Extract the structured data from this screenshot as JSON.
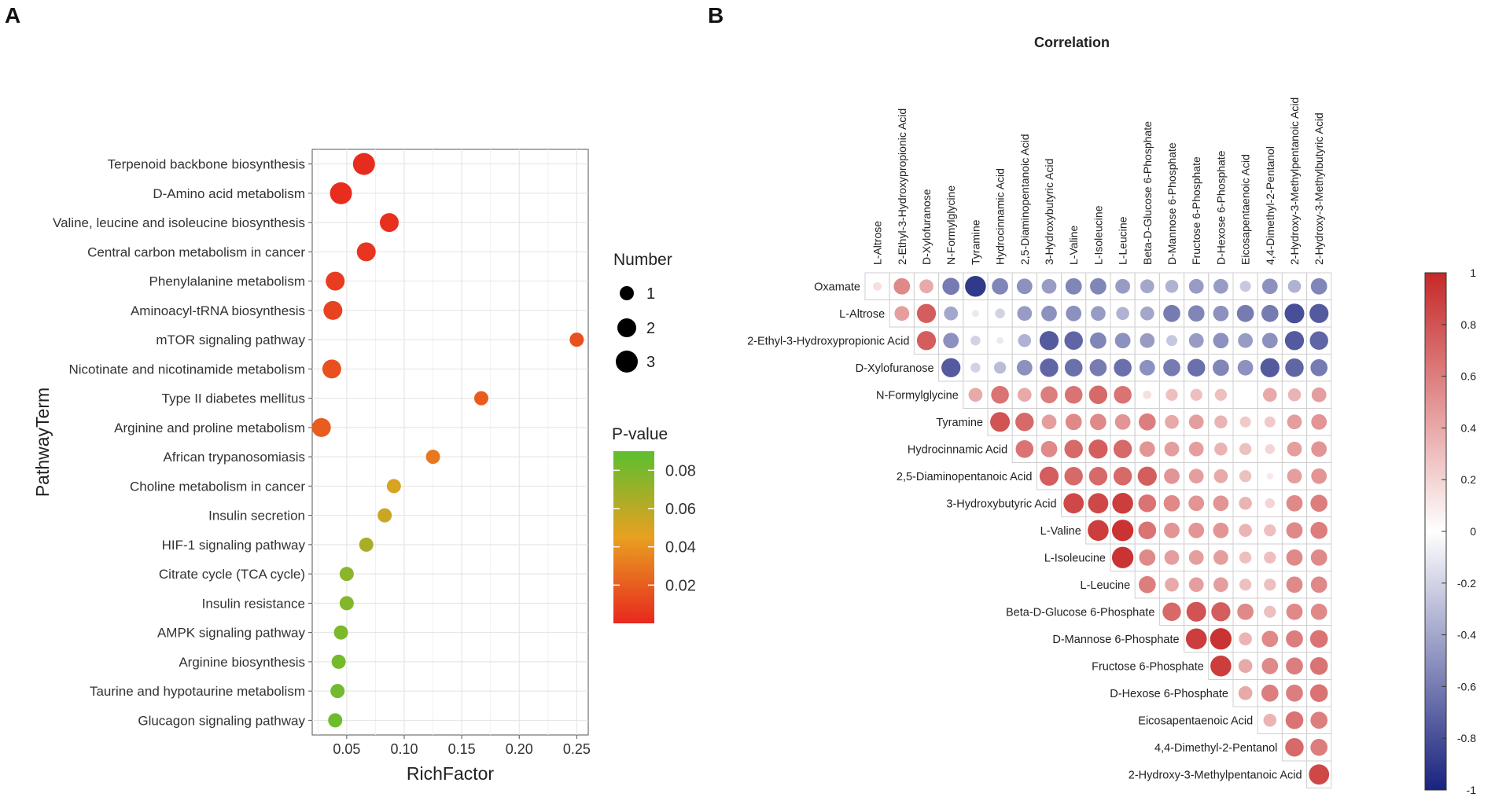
{
  "panels": {
    "a_label": "A",
    "b_label": "B"
  },
  "chart_data": [
    {
      "type": "scatter",
      "id": "A",
      "title": "",
      "xlabel": "RichFactor",
      "ylabel": "PathwayTerm",
      "xlim": [
        0.02,
        0.26
      ],
      "xticks": [
        0.05,
        0.1,
        0.15,
        0.2,
        0.25
      ],
      "xtick_labels": [
        "0.05",
        "0.10",
        "0.15",
        "0.20",
        "0.25"
      ],
      "grid": true,
      "points": [
        {
          "term": "Terpenoid backbone biosynthesis",
          "x": 0.065,
          "number": 3,
          "p": 0.001
        },
        {
          "term": "D-Amino acid metabolism",
          "x": 0.045,
          "number": 3,
          "p": 0.002
        },
        {
          "term": "Valine, leucine and isoleucine biosynthesis",
          "x": 0.087,
          "number": 2,
          "p": 0.003
        },
        {
          "term": "Central carbon metabolism in cancer",
          "x": 0.067,
          "number": 2,
          "p": 0.005
        },
        {
          "term": "Phenylalanine metabolism",
          "x": 0.04,
          "number": 2,
          "p": 0.007
        },
        {
          "term": "Aminoacyl-tRNA biosynthesis",
          "x": 0.038,
          "number": 2,
          "p": 0.01
        },
        {
          "term": "mTOR signaling pathway",
          "x": 0.25,
          "number": 1,
          "p": 0.015
        },
        {
          "term": "Nicotinate and nicotinamide metabolism",
          "x": 0.037,
          "number": 2,
          "p": 0.015
        },
        {
          "term": "Type II diabetes mellitus",
          "x": 0.167,
          "number": 1,
          "p": 0.02
        },
        {
          "term": "Arginine and proline metabolism",
          "x": 0.028,
          "number": 2,
          "p": 0.02
        },
        {
          "term": "African trypanosomiasis",
          "x": 0.125,
          "number": 1,
          "p": 0.03
        },
        {
          "term": "Choline metabolism in cancer",
          "x": 0.091,
          "number": 1,
          "p": 0.05
        },
        {
          "term": "Insulin secretion",
          "x": 0.083,
          "number": 1,
          "p": 0.055
        },
        {
          "term": "HIF-1 signaling pathway",
          "x": 0.067,
          "number": 1,
          "p": 0.065
        },
        {
          "term": "Citrate cycle (TCA cycle)",
          "x": 0.05,
          "number": 1,
          "p": 0.075
        },
        {
          "term": "Insulin resistance",
          "x": 0.05,
          "number": 1,
          "p": 0.077
        },
        {
          "term": "AMPK signaling pathway",
          "x": 0.045,
          "number": 1,
          "p": 0.08
        },
        {
          "term": "Arginine biosynthesis",
          "x": 0.043,
          "number": 1,
          "p": 0.082
        },
        {
          "term": "Taurine and hypotaurine metabolism",
          "x": 0.042,
          "number": 1,
          "p": 0.083
        },
        {
          "term": "Glucagon signaling pathway",
          "x": 0.04,
          "number": 1,
          "p": 0.085
        }
      ],
      "legend_size": {
        "title": "Number",
        "values": [
          1,
          2,
          3
        ],
        "labels": [
          "1",
          "2",
          "3"
        ]
      },
      "legend_color": {
        "title": "P-value",
        "ticks": [
          0.08,
          0.06,
          0.04,
          0.02
        ],
        "tick_labels": [
          "0.08",
          "0.06",
          "0.04",
          "0.02"
        ],
        "range": [
          0.0,
          0.09
        ],
        "low_color": "#e8281f",
        "mid_color": "#e8a020",
        "high_color": "#5cbf30"
      }
    },
    {
      "type": "heatmap",
      "id": "B",
      "title": "Correlation",
      "row_labels": [
        "Oxamate",
        "L-Altrose",
        "2-Ethyl-3-Hydroxypropionic Acid",
        "D-Xylofuranose",
        "N-Formylglycine",
        "Tyramine",
        "Hydrocinnamic Acid",
        "2,5-Diaminopentanoic Acid",
        "3-Hydroxybutyric Acid",
        "L-Valine",
        "L-Isoleucine",
        "L-Leucine",
        "Beta-D-Glucose 6-Phosphate",
        "D-Mannose 6-Phosphate",
        "Fructose 6-Phosphate",
        "D-Hexose 6-Phosphate",
        "Eicosapentaenoic Acid",
        "4,4-Dimethyl-2-Pentanol",
        "2-Hydroxy-3-Methylpentanoic Acid"
      ],
      "col_labels": [
        "L-Altrose",
        "2-Ethyl-3-Hydroxypropionic Acid",
        "D-Xylofuranose",
        "N-Formylglycine",
        "Tyramine",
        "Hydrocinnamic Acid",
        "2,5-Diaminopentanoic Acid",
        "3-Hydroxybutyric Acid",
        "L-Valine",
        "L-Isoleucine",
        "L-Leucine",
        "Beta-D-Glucose 6-Phosphate",
        "D-Mannose 6-Phosphate",
        "Fructose 6-Phosphate",
        "D-Hexose 6-Phosphate",
        "Eicosapentaenoic Acid",
        "4,4-Dimethyl-2-Pentanol",
        "2-Hydroxy-3-Methylpentanoic Acid",
        "2-Hydroxy-3-Methylbutyric Acid"
      ],
      "values": [
        [
          0.15,
          0.55,
          0.4,
          -0.6,
          -0.9,
          -0.55,
          -0.5,
          -0.45,
          -0.55,
          -0.55,
          -0.45,
          -0.4,
          -0.35,
          -0.45,
          -0.45,
          -0.25,
          -0.5,
          -0.35,
          -0.55
        ],
        [
          null,
          0.45,
          0.75,
          -0.4,
          -0.1,
          -0.2,
          -0.45,
          -0.5,
          -0.5,
          -0.45,
          -0.35,
          -0.4,
          -0.6,
          -0.55,
          -0.5,
          -0.6,
          -0.6,
          -0.8,
          -0.75
        ],
        [
          null,
          null,
          0.75,
          -0.5,
          -0.2,
          -0.1,
          -0.35,
          -0.75,
          -0.7,
          -0.55,
          -0.5,
          -0.45,
          -0.25,
          -0.45,
          -0.5,
          -0.45,
          -0.5,
          -0.75,
          -0.7
        ],
        [
          null,
          null,
          null,
          -0.75,
          -0.2,
          -0.3,
          -0.5,
          -0.7,
          -0.65,
          -0.6,
          -0.65,
          -0.5,
          -0.6,
          -0.65,
          -0.55,
          -0.5,
          -0.75,
          -0.7,
          -0.6
        ],
        [
          null,
          null,
          null,
          null,
          0.4,
          0.65,
          0.4,
          0.6,
          0.65,
          0.7,
          0.65,
          0.15,
          0.3,
          0.3,
          0.3,
          0.0,
          0.4,
          0.35,
          0.45
        ],
        [
          null,
          null,
          null,
          null,
          null,
          0.8,
          0.7,
          0.45,
          0.55,
          0.55,
          0.5,
          0.6,
          0.4,
          0.45,
          0.35,
          0.25,
          0.25,
          0.45,
          0.5
        ],
        [
          null,
          null,
          null,
          null,
          null,
          null,
          0.65,
          0.55,
          0.7,
          0.75,
          0.7,
          0.5,
          0.45,
          0.45,
          0.35,
          0.3,
          0.2,
          0.45,
          0.5
        ],
        [
          null,
          null,
          null,
          null,
          null,
          null,
          null,
          0.75,
          0.7,
          0.7,
          0.7,
          0.75,
          0.5,
          0.45,
          0.4,
          0.3,
          0.1,
          0.45,
          0.5
        ],
        [
          null,
          null,
          null,
          null,
          null,
          null,
          null,
          null,
          0.85,
          0.85,
          0.9,
          0.65,
          0.55,
          0.5,
          0.5,
          0.35,
          0.2,
          0.55,
          0.6
        ],
        [
          null,
          null,
          null,
          null,
          null,
          null,
          null,
          null,
          null,
          0.9,
          0.95,
          0.65,
          0.5,
          0.5,
          0.5,
          0.35,
          0.3,
          0.55,
          0.6
        ],
        [
          null,
          null,
          null,
          null,
          null,
          null,
          null,
          null,
          null,
          null,
          0.95,
          0.55,
          0.45,
          0.45,
          0.45,
          0.3,
          0.3,
          0.55,
          0.55
        ],
        [
          null,
          null,
          null,
          null,
          null,
          null,
          null,
          null,
          null,
          null,
          null,
          0.6,
          0.4,
          0.45,
          0.45,
          0.3,
          0.3,
          0.55,
          0.55
        ],
        [
          null,
          null,
          null,
          null,
          null,
          null,
          null,
          null,
          null,
          null,
          null,
          null,
          0.7,
          0.8,
          0.75,
          0.55,
          0.3,
          0.55,
          0.55
        ],
        [
          null,
          null,
          null,
          null,
          null,
          null,
          null,
          null,
          null,
          null,
          null,
          null,
          null,
          0.9,
          0.95,
          0.35,
          0.55,
          0.6,
          0.65
        ],
        [
          null,
          null,
          null,
          null,
          null,
          null,
          null,
          null,
          null,
          null,
          null,
          null,
          null,
          null,
          0.9,
          0.4,
          0.55,
          0.6,
          0.65
        ],
        [
          null,
          null,
          null,
          null,
          null,
          null,
          null,
          null,
          null,
          null,
          null,
          null,
          null,
          null,
          null,
          0.4,
          0.6,
          0.6,
          0.65
        ],
        [
          null,
          null,
          null,
          null,
          null,
          null,
          null,
          null,
          null,
          null,
          null,
          null,
          null,
          null,
          null,
          null,
          0.35,
          0.65,
          0.6
        ],
        [
          null,
          null,
          null,
          null,
          null,
          null,
          null,
          null,
          null,
          null,
          null,
          null,
          null,
          null,
          null,
          null,
          null,
          0.7,
          0.6
        ],
        [
          null,
          null,
          null,
          null,
          null,
          null,
          null,
          null,
          null,
          null,
          null,
          null,
          null,
          null,
          null,
          null,
          null,
          null,
          0.85
        ]
      ],
      "colorbar": {
        "ticks": [
          1,
          0.8,
          0.6,
          0.4,
          0.2,
          0,
          -0.2,
          -0.4,
          -0.6,
          -0.8,
          -1
        ],
        "tick_labels": [
          "1",
          "0.8",
          "0.6",
          "0.4",
          "0.2",
          "0",
          "-0.2",
          "-0.4",
          "-0.6",
          "-0.8",
          "-1"
        ],
        "range": [
          -1,
          1
        ],
        "neg_color": "#1a237e",
        "zero_color": "#ffffff",
        "pos_color": "#c62828"
      }
    }
  ]
}
